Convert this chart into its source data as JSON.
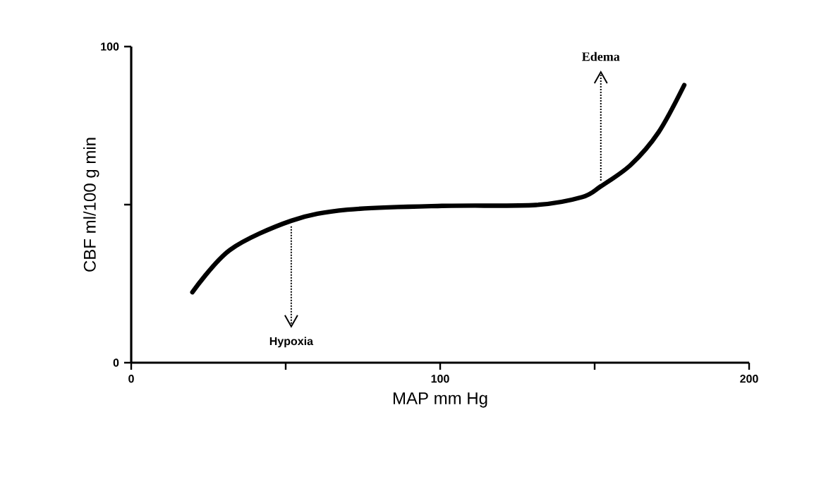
{
  "chart_data": {
    "type": "line",
    "xlabel": "MAP mm Hg",
    "ylabel": "CBF ml/100 g min",
    "x": [
      19.8,
      32,
      51.8,
      70,
      100.6,
      131,
      146,
      152,
      161.6,
      170.7,
      179
    ],
    "series": [
      {
        "color": "#000000",
        "values": [
          22.3,
          35.7,
          44.9,
          48.4,
          49.6,
          49.9,
          52.4,
          55.8,
          62.5,
          72.9,
          87.8
        ]
      }
    ],
    "xlim": [
      0,
      200
    ],
    "ylim": [
      0,
      100
    ],
    "xticks": [
      0,
      {
        "value": 50,
        "label": null
      },
      100,
      {
        "value": 150,
        "label": null
      },
      200
    ],
    "yticks": [
      0,
      {
        "value": 50,
        "label": null
      },
      100
    ],
    "annotations": [
      {
        "text": "Hypoxia",
        "x": 51.8,
        "y": 44.9
      },
      {
        "text": "Edema",
        "x": 152,
        "y": 55.8
      }
    ],
    "grid": false,
    "marker": "none",
    "line_style": "solid"
  }
}
